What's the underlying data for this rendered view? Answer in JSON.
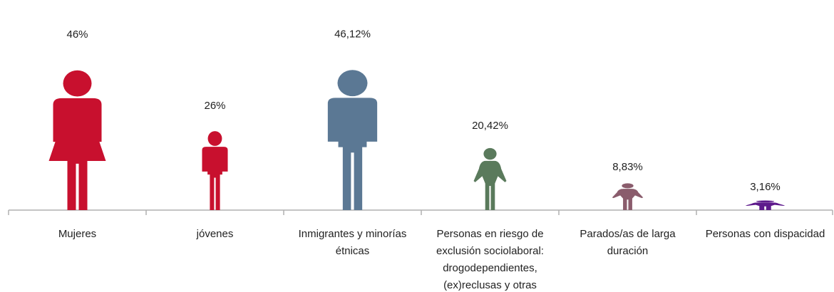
{
  "chart_data": {
    "type": "bar",
    "title": "",
    "xlabel": "",
    "ylabel": "",
    "categories": [
      [
        "Mujeres"
      ],
      [
        "jóvenes"
      ],
      [
        "Inmigrantes y minorías",
        "étnicas"
      ],
      [
        "Personas en riesgo de",
        "exclusión sociolaboral:",
        "drogodependientes,",
        "(ex)reclusas y otras"
      ],
      [
        "Parados/as de larga",
        "duración"
      ],
      [
        "Personas con dispacidad"
      ]
    ],
    "values": [
      46,
      26,
      46.12,
      20.42,
      8.83,
      3.16
    ],
    "value_labels": [
      "46%",
      "26%",
      "46,12%",
      "20,42%",
      "8,83%",
      "3,16%"
    ],
    "colors": [
      "#c8102e",
      "#c8102e",
      "#5b7894",
      "#5a7a5c",
      "#8a5c6c",
      "#5e1a8c"
    ],
    "icons": [
      "woman-figure-icon",
      "person-figure-icon",
      "person-figure-icon",
      "person-figure-icon",
      "person-figure-icon",
      "person-figure-icon"
    ],
    "ylim": [
      0,
      50
    ],
    "grid": false,
    "legend": "none"
  }
}
